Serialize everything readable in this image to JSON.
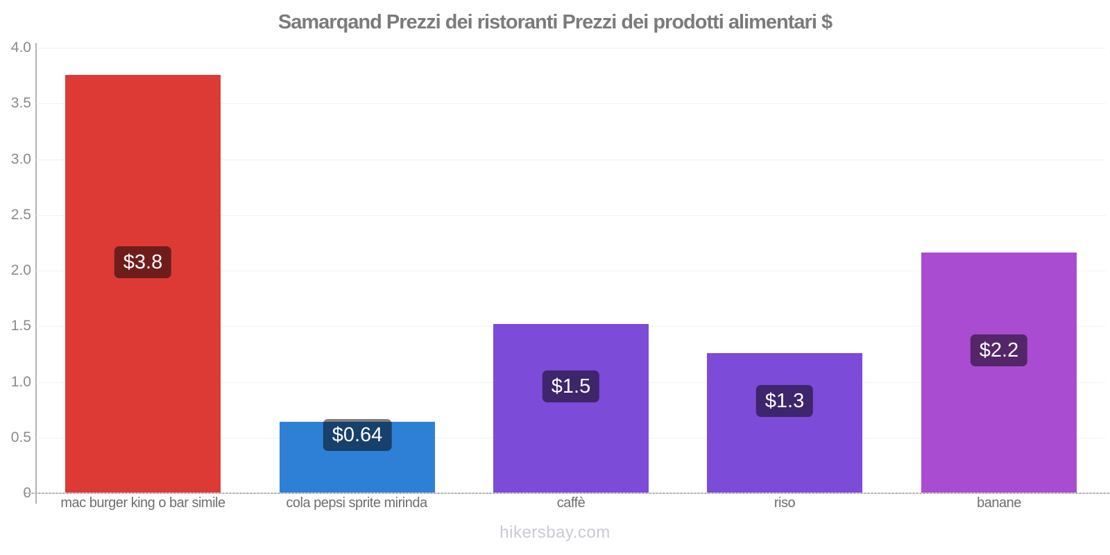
{
  "footer": {
    "watermark": "hikersbay.com"
  },
  "colors": {
    "title_text": "#7b7b7b",
    "y_tick_text": "#8a8a8a",
    "x_label_text": "#6e6e6e",
    "axis_line": "#b2b2b2",
    "baseline": "#cdcdcf",
    "gridline": "#f1f1f4",
    "watermark_text": "#c9c9d2",
    "value_badge": "rgba(0,0,0,0.5)",
    "value_badge_text": "#ffffff"
  },
  "chart_data": {
    "type": "bar",
    "title": "Samarqand Prezzi dei ristoranti Prezzi dei prodotti alimentari $",
    "currency": "$",
    "categories": [
      "mac burger king o bar simile",
      "cola pepsi sprite mirinda",
      "caffè",
      "riso",
      "banane"
    ],
    "values": [
      3.76,
      0.64,
      1.52,
      1.26,
      2.16
    ],
    "value_labels": [
      "$3.8",
      "$0.64",
      "$1.5",
      "$1.3",
      "$2.2"
    ],
    "bar_colors": [
      "#dd3a36",
      "#2e80d6",
      "#7c4bd8",
      "#7c4bd8",
      "#a94cd2"
    ],
    "xlabel": "",
    "ylabel": "",
    "ylim": [
      0,
      4.0
    ],
    "yticks": [
      0,
      0.5,
      1.0,
      1.5,
      2.0,
      2.5,
      3.0,
      3.5,
      4.0
    ],
    "ytick_labels": [
      "0",
      "0.5",
      "1.0",
      "1.5",
      "2.0",
      "2.5",
      "3.0",
      "3.5",
      "4.0"
    ],
    "grid": true,
    "legend": false,
    "footer_note": "hikersbay.com"
  }
}
